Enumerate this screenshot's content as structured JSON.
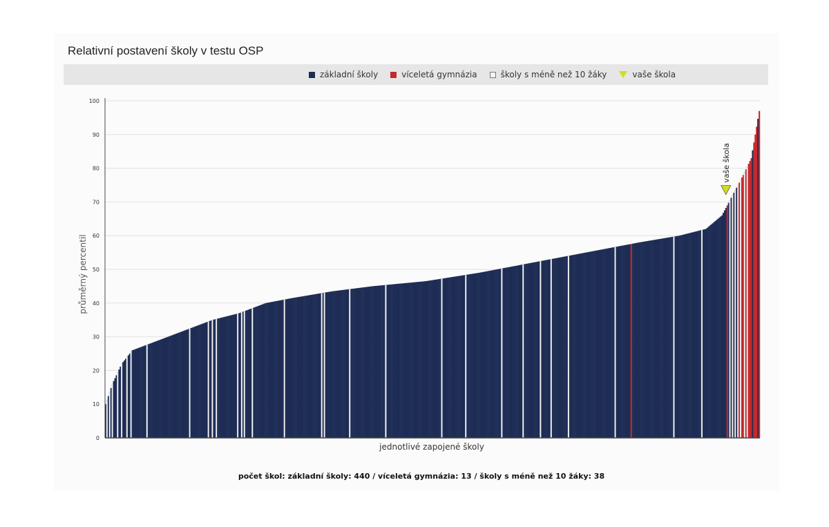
{
  "legend": {
    "items": [
      {
        "label": "základní školy",
        "color": "#1e2d55",
        "shape": "square"
      },
      {
        "label": "víceletá gymnázia",
        "color": "#c8282c",
        "shape": "square"
      },
      {
        "label": "školy s méně než 10 žáky",
        "color": "#f4f4f4",
        "shape": "square-outlined"
      },
      {
        "label": "vaše škola",
        "color": "#d2dd1c",
        "shape": "triangle"
      }
    ]
  },
  "footer": {
    "summary": "počet škol: základní školy: 440 / víceletá gymnázia: 13 / školy s méně než 10 žáky: 38"
  },
  "chart_data": {
    "type": "bar",
    "title": "Relativní postavení školy v testu OSP",
    "xlabel": "jednotlivé zapojené školy",
    "ylabel": "průměrný percentil",
    "ylim": [
      0,
      100
    ],
    "yticks": [
      0,
      10,
      20,
      30,
      40,
      50,
      60,
      70,
      80,
      90,
      100
    ],
    "grid": true,
    "legend_position": "top",
    "categories_count": 491,
    "counts": {
      "zakladni_skoly": 440,
      "vicelata_gymnazia": 13,
      "skoly_s_mene_nez_10_zaky": 38
    },
    "series": [
      {
        "name": "základní školy",
        "color": "#1e2d55"
      },
      {
        "name": "víceletá gymnázia",
        "color": "#c8282c"
      },
      {
        "name": "školy s méně než 10 žáky",
        "color": "#f4f4f4"
      }
    ],
    "distribution_anchors": [
      [
        0,
        10
      ],
      [
        5,
        16
      ],
      [
        12,
        22
      ],
      [
        20,
        26
      ],
      [
        40,
        29
      ],
      [
        60,
        32
      ],
      [
        80,
        35
      ],
      [
        100,
        37
      ],
      [
        120,
        40
      ],
      [
        140,
        41.5
      ],
      [
        170,
        43.5
      ],
      [
        200,
        45
      ],
      [
        240,
        46.5
      ],
      [
        280,
        49
      ],
      [
        320,
        52
      ],
      [
        360,
        55
      ],
      [
        400,
        58
      ],
      [
        430,
        60
      ],
      [
        450,
        62
      ],
      [
        462,
        66
      ],
      [
        470,
        72
      ],
      [
        478,
        78
      ],
      [
        484,
        83
      ],
      [
        490,
        97
      ]
    ],
    "gymnazia_indices": [
      394,
      466,
      475,
      477,
      478,
      480,
      482,
      483,
      484,
      486,
      487,
      488,
      490
    ],
    "small_school_indices": [
      1,
      3,
      5,
      9,
      12,
      16,
      19,
      31,
      63,
      77,
      80,
      83,
      99,
      102,
      104,
      110,
      134,
      162,
      164,
      183,
      210,
      252,
      270,
      297,
      313,
      326,
      334,
      347,
      382,
      426,
      447,
      468,
      470,
      472,
      474,
      476,
      479,
      481
    ],
    "your_school": {
      "label": "vaše škola",
      "index": 465,
      "value": 72
    }
  }
}
